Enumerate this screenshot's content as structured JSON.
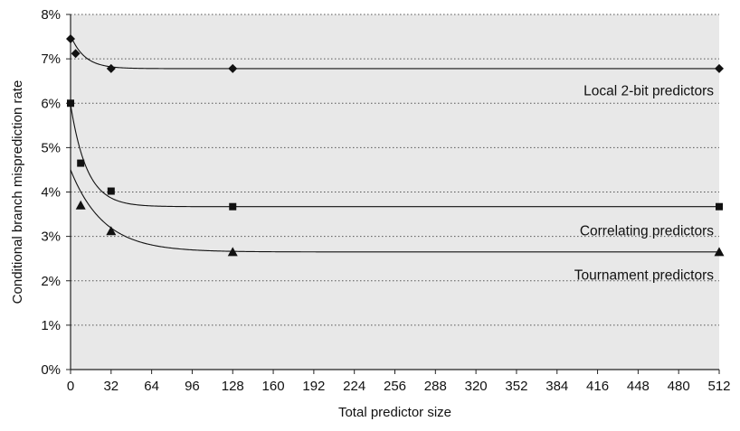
{
  "chart_data": {
    "type": "line",
    "title": "",
    "xlabel": "Total predictor size",
    "ylabel": "Conditional branch misprediction rate",
    "xlim": [
      0,
      512
    ],
    "ylim": [
      0,
      8
    ],
    "x_ticks": [
      0,
      32,
      64,
      96,
      128,
      160,
      192,
      224,
      256,
      288,
      320,
      352,
      384,
      416,
      448,
      480,
      512
    ],
    "x_tick_labels": [
      "0",
      "32",
      "64",
      "96",
      "128",
      "160",
      "192",
      "224",
      "256",
      "288",
      "320",
      "352",
      "384",
      "416",
      "448",
      "480",
      "512"
    ],
    "y_ticks": [
      0,
      1,
      2,
      3,
      4,
      5,
      6,
      7,
      8
    ],
    "y_tick_labels": [
      "0%",
      "1%",
      "2%",
      "3%",
      "4%",
      "5%",
      "6%",
      "7%",
      "8%"
    ],
    "grid": "horizontal dotted",
    "plot_background": "#e8e8e8",
    "series": [
      {
        "name": "Local 2-bit predictors",
        "marker": "diamond",
        "x": [
          0,
          4,
          32,
          128,
          512
        ],
        "y": [
          7.45,
          7.12,
          6.78,
          6.78,
          6.78
        ]
      },
      {
        "name": "Correlating predictors",
        "marker": "square",
        "x": [
          0,
          8,
          32,
          128,
          512
        ],
        "y": [
          6.0,
          4.65,
          4.02,
          3.67,
          3.67
        ]
      },
      {
        "name": "Tournament predictors",
        "marker": "triangle",
        "x": [
          8,
          32,
          128,
          512
        ],
        "y": [
          3.7,
          3.12,
          2.65,
          2.65
        ]
      }
    ]
  }
}
